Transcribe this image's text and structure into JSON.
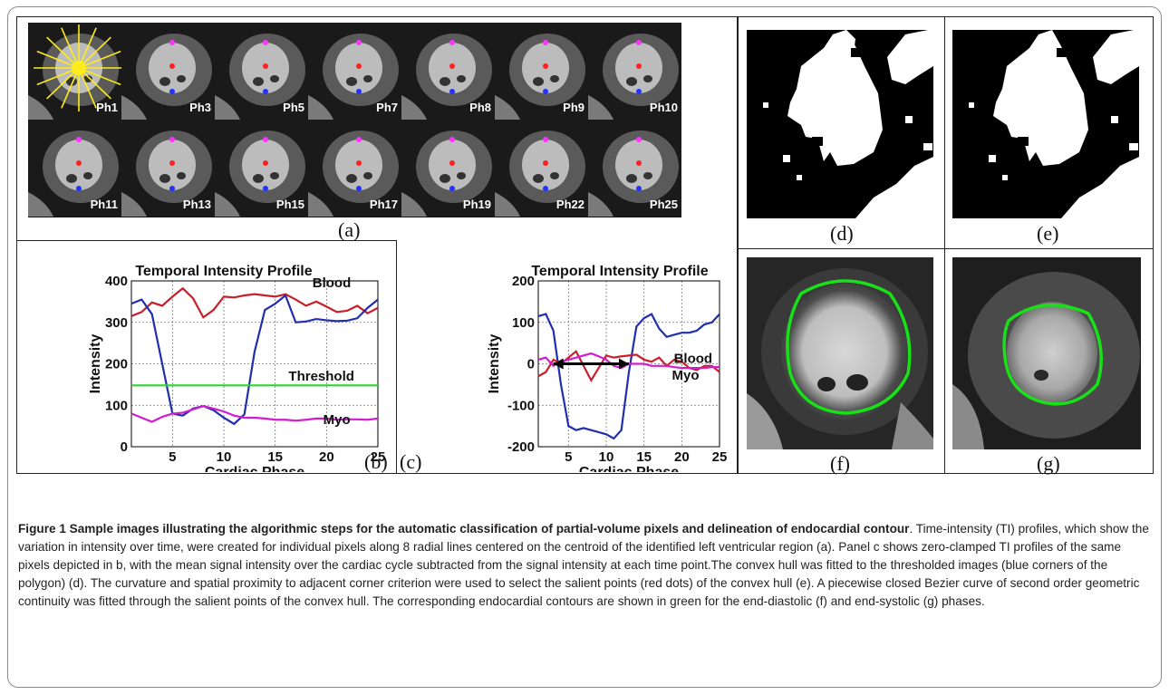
{
  "panel_labels": {
    "a": "(a)",
    "b": "(b)",
    "c": "(c)",
    "d": "(d)",
    "e": "(e)",
    "f": "(f)",
    "g": "(g)"
  },
  "phases_row1": [
    "Ph1",
    "Ph3",
    "Ph5",
    "Ph7",
    "Ph8",
    "Ph9",
    "Ph10"
  ],
  "phases_row2": [
    "Ph11",
    "Ph13",
    "Ph15",
    "Ph17",
    "Ph19",
    "Ph22",
    "Ph25"
  ],
  "chart_data": [
    {
      "type": "line",
      "title": "Temporal Intensity Profile",
      "xlabel": "Cardiac Phase",
      "ylabel": "Intensity",
      "xlim": [
        1,
        25
      ],
      "ylim": [
        0,
        400
      ],
      "xticks": [
        5,
        10,
        15,
        20,
        25
      ],
      "yticks": [
        0,
        100,
        200,
        300,
        400
      ],
      "grid": true,
      "annotations": [
        "Blood",
        "Threshold",
        "Myo"
      ],
      "series": [
        {
          "color": "#c8202a",
          "x": [
            1,
            2,
            3,
            4,
            5,
            6,
            7,
            8,
            9,
            10,
            11,
            12,
            13,
            14,
            15,
            16,
            17,
            18,
            19,
            20,
            21,
            22,
            23,
            24,
            25
          ],
          "y": [
            315,
            325,
            348,
            340,
            362,
            382,
            358,
            312,
            330,
            362,
            360,
            365,
            368,
            365,
            362,
            368,
            355,
            340,
            350,
            338,
            325,
            328,
            340,
            322,
            335
          ]
        },
        {
          "color": "#1f2fb0",
          "x": [
            1,
            2,
            3,
            4,
            5,
            6,
            7,
            8,
            9,
            10,
            11,
            12,
            13,
            14,
            15,
            16,
            17,
            18,
            19,
            20,
            21,
            22,
            23,
            24,
            25
          ],
          "y": [
            345,
            355,
            320,
            200,
            80,
            75,
            92,
            98,
            88,
            70,
            55,
            78,
            230,
            330,
            345,
            365,
            300,
            302,
            308,
            305,
            303,
            304,
            310,
            335,
            355
          ]
        },
        {
          "color": "#d21ccf",
          "x": [
            1,
            2,
            3,
            4,
            5,
            6,
            7,
            8,
            9,
            10,
            11,
            12,
            13,
            14,
            15,
            16,
            17,
            18,
            19,
            20,
            21,
            22,
            23,
            24,
            25
          ],
          "y": [
            80,
            70,
            60,
            72,
            80,
            82,
            90,
            98,
            92,
            85,
            75,
            70,
            70,
            68,
            65,
            65,
            63,
            65,
            68,
            68,
            65,
            66,
            66,
            65,
            68
          ]
        },
        {
          "color": "#2fd42f",
          "x": [
            1,
            25
          ],
          "y": [
            148,
            148
          ]
        }
      ]
    },
    {
      "type": "line",
      "title": "Temporal Intensity Profile",
      "xlabel": "Cardiac Phase",
      "ylabel": "Intensity",
      "xlim": [
        1,
        25
      ],
      "ylim": [
        -200,
        200
      ],
      "xticks": [
        5,
        10,
        15,
        20,
        25
      ],
      "yticks": [
        -200,
        -100,
        0,
        100,
        200
      ],
      "grid": true,
      "annotations": [
        "Blood",
        "Myo"
      ],
      "series": [
        {
          "color": "#1f2fb0",
          "x": [
            1,
            2,
            3,
            4,
            5,
            6,
            7,
            8,
            9,
            10,
            11,
            12,
            13,
            14,
            15,
            16,
            17,
            18,
            19,
            20,
            21,
            22,
            23,
            24,
            25
          ],
          "y": [
            115,
            120,
            80,
            -50,
            -150,
            -160,
            -155,
            -160,
            -165,
            -170,
            -180,
            -160,
            -20,
            90,
            110,
            120,
            85,
            65,
            70,
            75,
            75,
            80,
            95,
            100,
            120
          ]
        },
        {
          "color": "#c8202a",
          "x": [
            1,
            2,
            3,
            4,
            5,
            6,
            7,
            8,
            9,
            10,
            11,
            12,
            13,
            14,
            15,
            16,
            17,
            18,
            19,
            20,
            21,
            22,
            23,
            24,
            25
          ],
          "y": [
            -30,
            -20,
            10,
            0,
            15,
            30,
            -5,
            -40,
            -10,
            20,
            15,
            18,
            20,
            22,
            10,
            5,
            15,
            -5,
            10,
            5,
            -10,
            -15,
            -5,
            -5,
            -20
          ]
        },
        {
          "color": "#d21ccf",
          "x": [
            1,
            2,
            3,
            4,
            5,
            6,
            7,
            8,
            9,
            10,
            11,
            12,
            13,
            14,
            15,
            16,
            17,
            18,
            19,
            20,
            21,
            22,
            23,
            24,
            25
          ],
          "y": [
            10,
            15,
            -5,
            5,
            10,
            15,
            20,
            25,
            18,
            10,
            -5,
            -10,
            0,
            0,
            0,
            -5,
            -5,
            -5,
            -8,
            -10,
            -10,
            -10,
            -10,
            -8,
            -8
          ]
        },
        {
          "color": "#000000",
          "x": [
            3,
            13
          ],
          "y": [
            0,
            0
          ]
        }
      ]
    }
  ],
  "caption": {
    "title": "Figure 1 Sample images illustrating the algorithmic steps for the automatic classification of partial-volume pixels and delineation of endocardial contour",
    "body": ". Time-intensity (TI) profiles, which show the variation in intensity over time, were created for individual pixels along 8 radial lines centered on the centroid of the identified left ventricular region (a). Panel c shows zero-clamped TI profiles of the same pixels depicted in b, with the mean signal intensity over the cardiac cycle subtracted from the signal intensity at each time point.The convex hull was fitted to the thresholded images (blue corners of the polygon) (d). The curvature and spatial proximity to adjacent corner criterion were used to select the salient points (red dots) of the convex hull (e). A piecewise closed Bezier curve of second order geometric continuity was fitted through the salient points of the convex hull. The corresponding endocardial contours are shown in green for the end-diastolic (f) and end-systolic (g) phases."
  }
}
